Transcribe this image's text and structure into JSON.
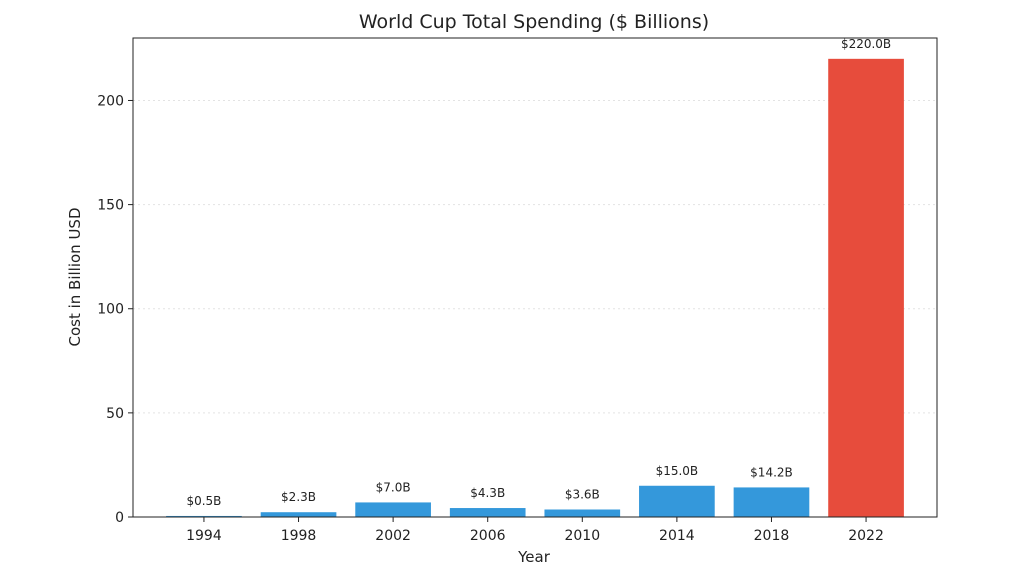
{
  "chart_data": {
    "type": "bar",
    "title": "World Cup Total Spending ($ Billions)",
    "xlabel": "Year",
    "ylabel": "Cost in Billion USD",
    "categories": [
      "1994",
      "1998",
      "2002",
      "2006",
      "2010",
      "2014",
      "2018",
      "2022"
    ],
    "values": [
      0.5,
      2.3,
      7.0,
      4.3,
      3.6,
      15.0,
      14.2,
      220.0
    ],
    "data_labels": [
      "$0.5B",
      "$2.3B",
      "$7.0B",
      "$4.3B",
      "$3.6B",
      "$15.0B",
      "$14.2B",
      "$220.0B"
    ],
    "bar_colors": [
      "#3498db",
      "#3498db",
      "#3498db",
      "#3498db",
      "#3498db",
      "#3498db",
      "#3498db",
      "#e74c3c"
    ],
    "ylim": [
      0,
      230
    ],
    "yticks": [
      0,
      50,
      100,
      150,
      200
    ],
    "grid": true,
    "legend": "none"
  }
}
